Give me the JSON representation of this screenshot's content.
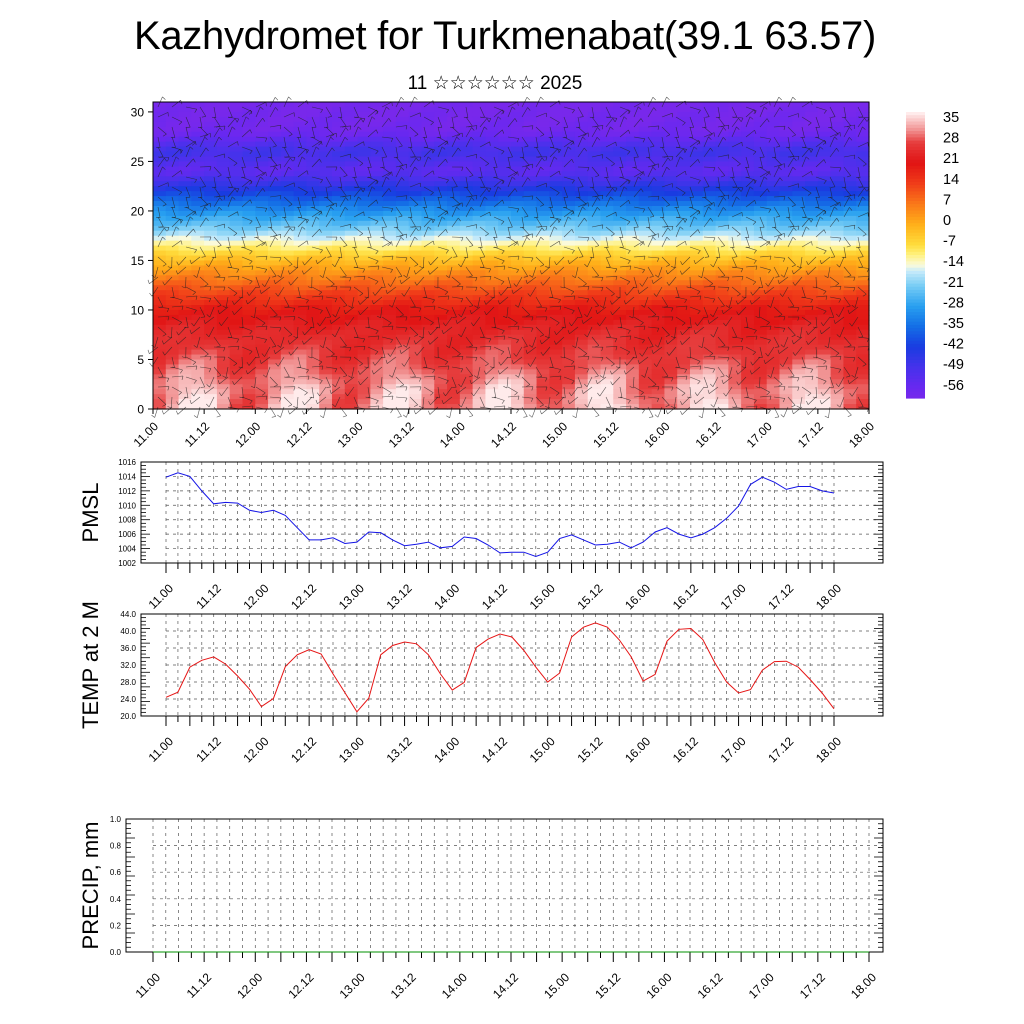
{
  "title": "Kazhydromet for Turkmenabat(39.1 63.57)",
  "subtitle": "11 ☆☆☆☆☆☆ 2025",
  "colors": {
    "pmsl_line": "#1414e6",
    "temp_line": "#e61414",
    "precip_line": "#009000"
  },
  "chart_data": [
    {
      "type": "heatmap",
      "name": "cross_section",
      "yticks": [
        "0",
        "5",
        "10",
        "15",
        "20",
        "25",
        "30"
      ],
      "ylim": [
        0,
        31
      ],
      "xticks": [
        "11.00",
        "11.12",
        "12.00",
        "12.12",
        "13.00",
        "13.12",
        "14.00",
        "14.12",
        "15.00",
        "15.12",
        "16.00",
        "16.12",
        "17.00",
        "17.12",
        "18.00"
      ],
      "colorbar_labels": [
        "35",
        "28",
        "21",
        "14",
        "7",
        "0",
        "-7",
        "-14",
        "-21",
        "-28",
        "-35",
        "-42",
        "-49",
        "-56"
      ],
      "colorbar_range": [
        -60,
        38
      ],
      "temperature_profile": {
        "levels": [
          0,
          2,
          5,
          8,
          10,
          12,
          14,
          15,
          16,
          17,
          18,
          20,
          22,
          24,
          26,
          28,
          31
        ],
        "values": [
          34,
          33,
          28,
          24,
          20,
          12,
          3,
          -2,
          -8,
          -14,
          -20,
          -30,
          -42,
          -54,
          -48,
          -58,
          -60
        ]
      },
      "overlay": "wind barbs"
    },
    {
      "type": "line",
      "name": "pmsl",
      "ylabel": "PMSL",
      "ylim": [
        1002,
        1016
      ],
      "yticks": [
        "1002",
        "1004",
        "1006",
        "1008",
        "1010",
        "1012",
        "1014",
        "1016"
      ],
      "xticks": [
        "11.00",
        "11.12",
        "12.00",
        "12.12",
        "13.00",
        "13.12",
        "14.00",
        "14.12",
        "15.00",
        "15.12",
        "16.00",
        "16.12",
        "17.00",
        "17.12",
        "18.00"
      ],
      "values": [
        1013.9,
        1014.5,
        1014.0,
        1012.0,
        1010.2,
        1010.4,
        1010.3,
        1009.3,
        1009.0,
        1009.3,
        1008.6,
        1006.9,
        1005.2,
        1005.2,
        1005.5,
        1004.7,
        1004.9,
        1006.3,
        1006.2,
        1005.2,
        1004.4,
        1004.6,
        1004.9,
        1004.1,
        1004.3,
        1005.6,
        1005.4,
        1004.5,
        1003.4,
        1003.5,
        1003.5,
        1002.9,
        1003.5,
        1005.4,
        1005.9,
        1005.2,
        1004.5,
        1004.6,
        1004.9,
        1004.1,
        1004.9,
        1006.3,
        1006.9,
        1006.0,
        1005.5,
        1006.0,
        1006.9,
        1008.2,
        1009.9,
        1012.9,
        1013.9,
        1013.2,
        1012.2,
        1012.6,
        1012.6,
        1012.0,
        1011.7
      ]
    },
    {
      "type": "line",
      "name": "temp2m",
      "ylabel": "TEMP at 2 M",
      "ylim": [
        20,
        44
      ],
      "yticks": [
        "20.0",
        "24.0",
        "28.0",
        "32.0",
        "36.0",
        "40.0",
        "44.0"
      ],
      "xticks": [
        "11.00",
        "11.12",
        "12.00",
        "12.12",
        "13.00",
        "13.12",
        "14.00",
        "14.12",
        "15.00",
        "15.12",
        "16.00",
        "16.12",
        "17.00",
        "17.12",
        "18.00"
      ],
      "values": [
        24.4,
        25.6,
        31.5,
        33.1,
        33.9,
        32.2,
        29.4,
        26.3,
        22.2,
        24.1,
        31.6,
        34.4,
        35.6,
        34.6,
        29.9,
        25.5,
        21.0,
        24.2,
        34.4,
        36.6,
        37.4,
        37.0,
        34.4,
        29.9,
        26.1,
        27.9,
        36.1,
        38.1,
        39.3,
        38.6,
        35.4,
        31.5,
        28.0,
        30.1,
        38.6,
        40.9,
        41.9,
        40.9,
        37.9,
        33.9,
        28.2,
        29.8,
        37.6,
        40.4,
        40.6,
        38.0,
        32.6,
        28.0,
        25.4,
        26.2,
        30.8,
        32.8,
        32.9,
        31.5,
        28.6,
        25.4,
        21.7
      ]
    },
    {
      "type": "line",
      "name": "precip",
      "ylabel": "PRECIP, mm",
      "ylim": [
        0,
        1
      ],
      "yticks": [
        "0.0",
        "0.2",
        "0.4",
        "0.6",
        "0.8",
        "1.0"
      ],
      "xticks": [
        "11.00",
        "11.12",
        "12.00",
        "12.12",
        "13.00",
        "13.12",
        "14.00",
        "14.12",
        "15.00",
        "15.12",
        "16.00",
        "16.12",
        "17.00",
        "17.12",
        "18.00"
      ],
      "values": [
        0,
        0,
        0,
        0,
        0,
        0,
        0,
        0,
        0,
        0,
        0,
        0,
        0,
        0,
        0,
        0,
        0,
        0,
        0,
        0,
        0,
        0,
        0,
        0,
        0,
        0,
        0,
        0,
        0,
        0,
        0,
        0,
        0,
        0,
        0,
        0,
        0,
        0,
        0,
        0,
        0,
        0,
        0,
        0,
        0,
        0,
        0,
        0,
        0,
        0,
        0,
        0,
        0,
        0,
        0,
        0,
        0
      ]
    }
  ]
}
